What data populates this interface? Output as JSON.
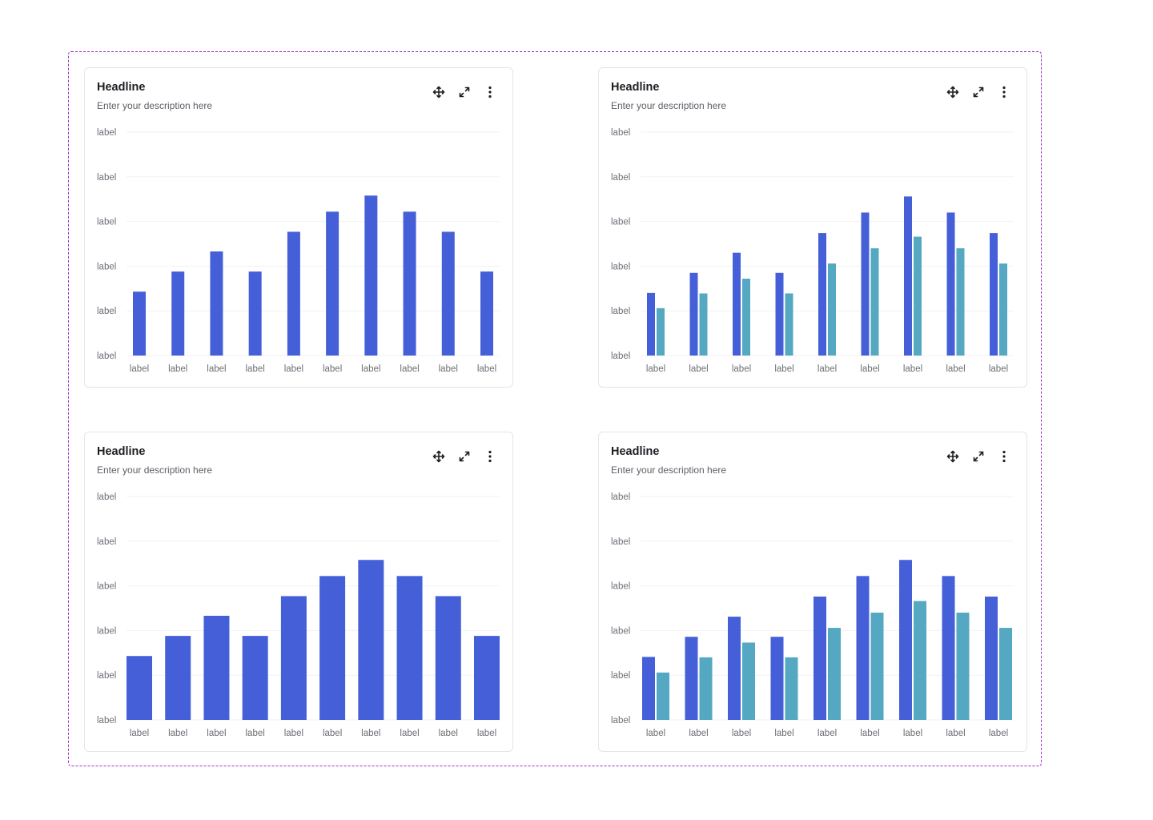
{
  "colors": {
    "primary": "#455fd9",
    "secondary": "#55a8c2",
    "frame_border": "#9b30c8"
  },
  "cards": [
    {
      "title": "Headline",
      "description": "Enter your description here",
      "icons": [
        "move-icon",
        "expand-icon",
        "more-vertical-icon"
      ],
      "chart_data": {
        "type": "bar",
        "variant": "thin",
        "ylim": [
          0,
          5
        ],
        "y_tick_labels": [
          "label",
          "label",
          "label",
          "label",
          "label",
          "label"
        ],
        "categories": [
          "label",
          "label",
          "label",
          "label",
          "label",
          "label",
          "label",
          "label",
          "label",
          "label"
        ],
        "series": [
          {
            "values": [
              1.43,
              1.88,
              2.33,
              1.88,
              2.77,
              3.22,
              3.58,
              3.22,
              2.77,
              1.88
            ]
          }
        ],
        "grid": true
      }
    },
    {
      "title": "Headline",
      "description": "Enter your description here",
      "icons": [
        "move-icon",
        "expand-icon",
        "more-vertical-icon"
      ],
      "chart_data": {
        "type": "bar",
        "variant": "thin",
        "ylim": [
          0,
          5
        ],
        "y_tick_labels": [
          "label",
          "label",
          "label",
          "label",
          "label",
          "label"
        ],
        "categories": [
          "label",
          "label",
          "label",
          "label",
          "label",
          "label",
          "label",
          "label",
          "label"
        ],
        "series": [
          {
            "values": [
              1.4,
              1.85,
              2.3,
              1.85,
              2.74,
              3.2,
              3.56,
              3.2,
              2.74
            ]
          },
          {
            "values": [
              1.06,
              1.39,
              1.72,
              1.39,
              2.06,
              2.4,
              2.66,
              2.4,
              2.06
            ]
          }
        ],
        "grid": true
      }
    },
    {
      "title": "Headline",
      "description": "Enter your description here",
      "icons": [
        "move-icon",
        "expand-icon",
        "more-vertical-icon"
      ],
      "chart_data": {
        "type": "bar",
        "variant": "wide",
        "ylim": [
          0,
          5
        ],
        "y_tick_labels": [
          "label",
          "label",
          "label",
          "label",
          "label",
          "label"
        ],
        "categories": [
          "label",
          "label",
          "label",
          "label",
          "label",
          "label",
          "label",
          "label",
          "label",
          "label"
        ],
        "series": [
          {
            "values": [
              1.43,
              1.88,
              2.33,
              1.88,
              2.77,
              3.22,
              3.58,
              3.22,
              2.77,
              1.88
            ]
          }
        ],
        "grid": true
      }
    },
    {
      "title": "Headline",
      "description": "Enter your description here",
      "icons": [
        "move-icon",
        "expand-icon",
        "more-vertical-icon"
      ],
      "chart_data": {
        "type": "bar",
        "variant": "wide",
        "ylim": [
          0,
          5
        ],
        "y_tick_labels": [
          "label",
          "label",
          "label",
          "label",
          "label",
          "label"
        ],
        "categories": [
          "label",
          "label",
          "label",
          "label",
          "label",
          "label",
          "label",
          "label",
          "label"
        ],
        "series": [
          {
            "values": [
              1.41,
              1.86,
              2.31,
              1.86,
              2.76,
              3.22,
              3.58,
              3.22,
              2.76
            ]
          },
          {
            "values": [
              1.06,
              1.4,
              1.73,
              1.4,
              2.06,
              2.4,
              2.66,
              2.4,
              2.06
            ]
          }
        ],
        "grid": true
      }
    }
  ]
}
